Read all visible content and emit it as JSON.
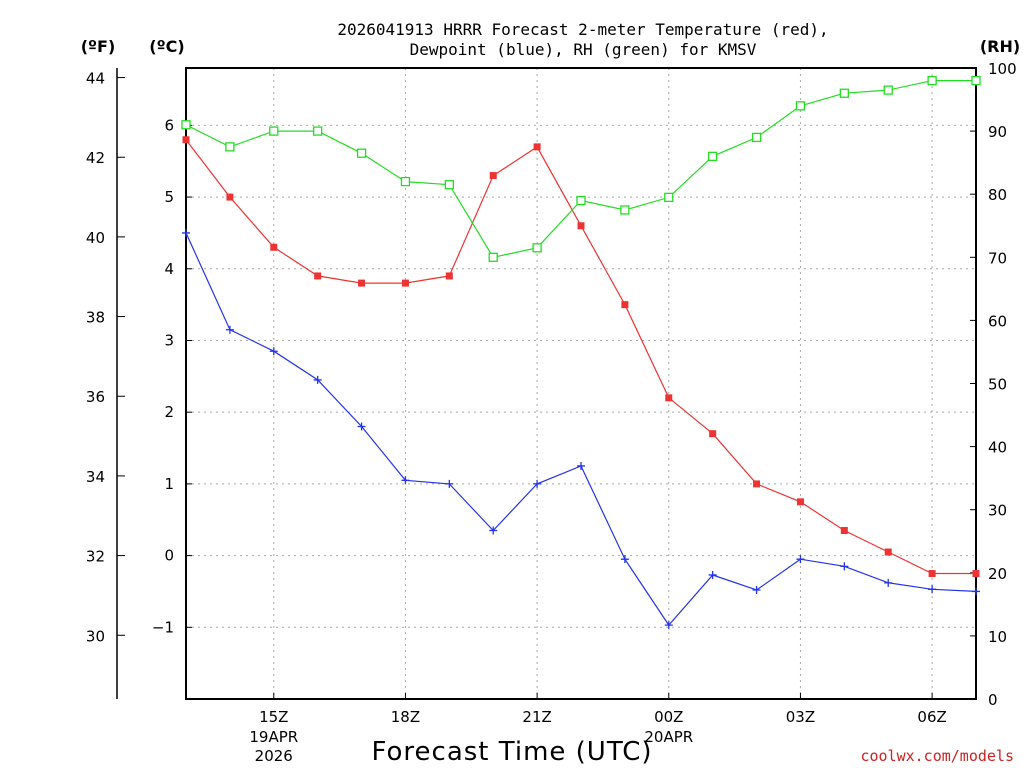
{
  "title_line1": "2026041913 HRRR Forecast 2-meter Temperature (red),",
  "title_line2": "Dewpoint (blue), RH (green) for KMSV",
  "unit_f": "(ºF)",
  "unit_c": "(ºC)",
  "unit_rh": "(RH)",
  "xlabel": "Forecast Time (UTC)",
  "credit": "coolwx.com/models",
  "colors": {
    "temperature": "#ee3333",
    "dewpoint": "#2233ee",
    "rh": "#22dd22",
    "grid": "#a9a9a9",
    "credit": "#cc2222"
  },
  "chart_data": {
    "type": "line",
    "title": "2026041913 HRRR Forecast 2-meter Temperature (red), Dewpoint (blue), RH (green) for KMSV",
    "xlabel": "Forecast Time (UTC)",
    "x_hours": [
      13,
      14,
      15,
      16,
      17,
      18,
      19,
      20,
      21,
      22,
      23,
      24,
      25,
      26,
      27,
      28,
      29,
      30,
      31
    ],
    "xlim": [
      13,
      31
    ],
    "x_ticks": [
      {
        "hour": 15,
        "label": "15Z",
        "sub1": "19APR",
        "sub2": "2026"
      },
      {
        "hour": 18,
        "label": "18Z"
      },
      {
        "hour": 21,
        "label": "21Z"
      },
      {
        "hour": 24,
        "label": "00Z",
        "sub1": "20APR"
      },
      {
        "hour": 27,
        "label": "03Z"
      },
      {
        "hour": 30,
        "label": "06Z"
      }
    ],
    "y_celsius": {
      "label": "(ºC)",
      "lim": [
        -2,
        6.8
      ],
      "ticks": [
        -1,
        0,
        1,
        2,
        3,
        4,
        5,
        6
      ]
    },
    "y_fahrenheit": {
      "label": "(ºF)",
      "ticks": [
        30,
        32,
        34,
        36,
        38,
        40,
        42,
        44
      ]
    },
    "y_rh": {
      "label": "(RH)",
      "lim": [
        0,
        100
      ],
      "ticks": [
        0,
        10,
        20,
        30,
        40,
        50,
        60,
        70,
        80,
        90,
        100
      ]
    },
    "series": [
      {
        "name": "Temperature (red)",
        "axis": "celsius",
        "marker": "filled-square",
        "values": [
          5.8,
          5.0,
          4.3,
          3.9,
          3.8,
          3.8,
          3.9,
          5.3,
          5.7,
          4.6,
          3.5,
          2.2,
          1.7,
          1.0,
          0.75,
          0.35,
          0.05,
          -0.25,
          -0.25
        ]
      },
      {
        "name": "Dewpoint (blue)",
        "axis": "celsius",
        "marker": "plus",
        "values": [
          4.5,
          3.15,
          2.85,
          2.45,
          1.8,
          1.05,
          1.0,
          0.35,
          1.0,
          1.25,
          -0.05,
          -0.97,
          -0.27,
          -0.48,
          -0.05,
          -0.15,
          -0.38,
          -0.47,
          -0.5
        ]
      },
      {
        "name": "RH (green)",
        "axis": "rh",
        "marker": "open-square",
        "values": [
          91,
          87.5,
          90,
          90,
          86.5,
          82,
          81.5,
          70,
          71.5,
          79,
          77.5,
          79.5,
          86,
          89,
          94,
          96,
          96.5,
          98,
          98
        ]
      }
    ]
  }
}
